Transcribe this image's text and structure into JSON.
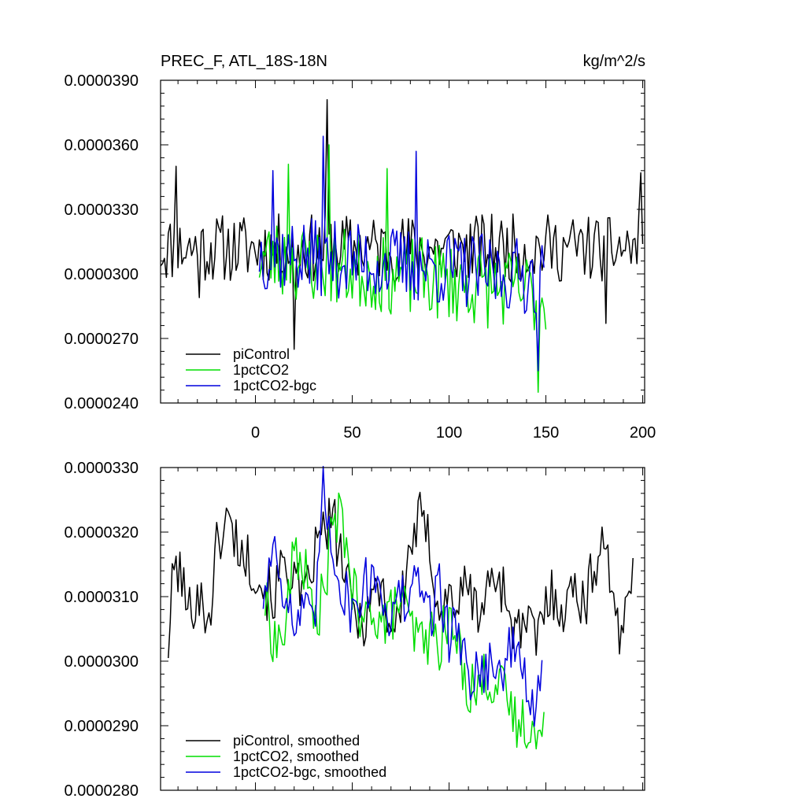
{
  "chart_data": [
    {
      "type": "line",
      "title": "PREC_F, ATL_18S-18N",
      "units": "kg/m^2/s",
      "xlim": [
        -49,
        201
      ],
      "ylim": [
        2.4e-05,
        3.9e-05
      ],
      "yticks": [
        "0.0000240",
        "0.0000270",
        "0.0000300",
        "0.0000330",
        "0.0000360",
        "0.0000390"
      ],
      "yticks_values": [
        2.4e-05,
        2.7e-05,
        3e-05,
        3.3e-05,
        3.6e-05,
        3.9e-05
      ],
      "xticks": [
        "0",
        "50",
        "100",
        "150",
        "200"
      ],
      "xticks_values": [
        0,
        50,
        100,
        150,
        200
      ],
      "legend_position": "bottom-left",
      "series": [
        {
          "name": "piControl",
          "color": "#000000",
          "x_start": -49,
          "x_end": 200,
          "seed": 11,
          "mean": 3.12e-05,
          "amp": 1.6e-06,
          "spikes": [
            [
              -41,
              3.5e-05
            ],
            [
              37,
              3.81e-05
            ],
            [
              20,
              2.65e-05
            ],
            [
              -29,
              2.89e-05
            ],
            [
              181,
              2.77e-05
            ],
            [
              199,
              3.47e-05
            ]
          ]
        },
        {
          "name": "1pctCO2",
          "color": "#00dd00",
          "x_start": 2,
          "x_end": 150,
          "seed": 23,
          "mean": 3.08e-05,
          "amp": 1.9e-06,
          "trend": -1.2e-08,
          "spikes": [
            [
              38,
              3.6e-05
            ],
            [
              146,
              2.45e-05
            ],
            [
              68,
              3.49e-05
            ],
            [
              17,
              3.51e-05
            ]
          ]
        },
        {
          "name": "1pctCO2-bgc",
          "color": "#0000dd",
          "x_start": 2,
          "x_end": 149,
          "seed": 37,
          "mean": 3.1e-05,
          "amp": 1.8e-06,
          "trend": -8e-09,
          "spikes": [
            [
              35,
              3.64e-05
            ],
            [
              83,
              3.57e-05
            ],
            [
              146,
              2.55e-05
            ],
            [
              9,
              3.48e-05
            ]
          ]
        }
      ]
    },
    {
      "type": "line",
      "xlim": [
        -49,
        201
      ],
      "ylim": [
        2.8e-05,
        3.3e-05
      ],
      "yticks": [
        "0.0000280",
        "0.0000290",
        "0.0000300",
        "0.0000310",
        "0.0000320",
        "0.0000330"
      ],
      "yticks_values": [
        2.8e-05,
        2.9e-05,
        3e-05,
        3.1e-05,
        3.2e-05,
        3.3e-05
      ],
      "xticks_values": [
        0,
        50,
        100,
        150,
        200
      ],
      "legend_position": "bottom-left",
      "series": [
        {
          "name": "piControl, smoothed",
          "color": "#000000",
          "x_start": -45,
          "x_end": 195,
          "anchors": [
            [
              -45,
              3.025e-05
            ],
            [
              -42,
              3.15e-05
            ],
            [
              -38,
              3.13e-05
            ],
            [
              -35,
              3.07e-05
            ],
            [
              -30,
              3.11e-05
            ],
            [
              -26,
              3.07e-05
            ],
            [
              -22,
              3.1e-05
            ],
            [
              -20,
              3.18e-05
            ],
            [
              -15,
              3.22e-05
            ],
            [
              -10,
              3.19e-05
            ],
            [
              -6,
              3.16e-05
            ],
            [
              -1,
              3.15e-05
            ],
            [
              5,
              3.11e-05
            ],
            [
              10,
              3.1e-05
            ],
            [
              15,
              3.16e-05
            ],
            [
              20,
              3.13e-05
            ],
            [
              25,
              3.08e-05
            ],
            [
              30,
              3.16e-05
            ],
            [
              35,
              3.2e-05
            ],
            [
              40,
              3.22e-05
            ],
            [
              45,
              3.15e-05
            ],
            [
              50,
              3.08e-05
            ],
            [
              55,
              3.06e-05
            ],
            [
              60,
              3.1e-05
            ],
            [
              65,
              3.12e-05
            ],
            [
              70,
              3.05e-05
            ],
            [
              75,
              3.08e-05
            ],
            [
              80,
              3.18e-05
            ],
            [
              85,
              3.22e-05
            ],
            [
              90,
              3.18e-05
            ],
            [
              95,
              3.08e-05
            ],
            [
              100,
              3.1e-05
            ],
            [
              105,
              3.09e-05
            ],
            [
              110,
              3.12e-05
            ],
            [
              115,
              3.07e-05
            ],
            [
              120,
              3.11e-05
            ],
            [
              125,
              3.14e-05
            ],
            [
              130,
              3.09e-05
            ],
            [
              135,
              3.04e-05
            ],
            [
              140,
              3.06e-05
            ],
            [
              145,
              3.03e-05
            ],
            [
              150,
              3.09e-05
            ],
            [
              155,
              3.11e-05
            ],
            [
              160,
              3.07e-05
            ],
            [
              165,
              3.13e-05
            ],
            [
              170,
              3.08e-05
            ],
            [
              175,
              3.15e-05
            ],
            [
              180,
              3.2e-05
            ],
            [
              184,
              3.12e-05
            ],
            [
              188,
              3.01e-05
            ],
            [
              192,
              3.1e-05
            ],
            [
              195,
              3.17e-05
            ]
          ]
        },
        {
          "name": "1pctCO2, smoothed",
          "color": "#00dd00",
          "x_start": 5,
          "x_end": 149,
          "anchors": [
            [
              5,
              3.09e-05
            ],
            [
              10,
              3.03e-05
            ],
            [
              15,
              3.04e-05
            ],
            [
              20,
              3.17e-05
            ],
            [
              25,
              3.15e-05
            ],
            [
              30,
              3.06e-05
            ],
            [
              35,
              3.1e-05
            ],
            [
              40,
              3.21e-05
            ],
            [
              45,
              3.22e-05
            ],
            [
              50,
              3.12e-05
            ],
            [
              55,
              3.04e-05
            ],
            [
              60,
              3.09e-05
            ],
            [
              65,
              3.06e-05
            ],
            [
              70,
              3.07e-05
            ],
            [
              75,
              3.1e-05
            ],
            [
              80,
              3.05e-05
            ],
            [
              85,
              3.03e-05
            ],
            [
              90,
              3.04e-05
            ],
            [
              95,
              3.03e-05
            ],
            [
              100,
              3.06e-05
            ],
            [
              105,
              3.02e-05
            ],
            [
              110,
              2.96e-05
            ],
            [
              115,
              2.96e-05
            ],
            [
              120,
              2.98e-05
            ],
            [
              125,
              2.96e-05
            ],
            [
              130,
              2.94e-05
            ],
            [
              135,
              2.9e-05
            ],
            [
              140,
              2.91e-05
            ],
            [
              145,
              2.88e-05
            ],
            [
              149,
              2.88e-05
            ]
          ]
        },
        {
          "name": "1pctCO2-bgc, smoothed",
          "color": "#0000dd",
          "x_start": 4,
          "x_end": 148,
          "anchors": [
            [
              4,
              3.1e-05
            ],
            [
              10,
              3.19e-05
            ],
            [
              15,
              3.11e-05
            ],
            [
              20,
              3.05e-05
            ],
            [
              25,
              3.08e-05
            ],
            [
              30,
              3.04e-05
            ],
            [
              35,
              3.26e-05
            ],
            [
              40,
              3.18e-05
            ],
            [
              45,
              3.11e-05
            ],
            [
              50,
              3.08e-05
            ],
            [
              55,
              3.11e-05
            ],
            [
              60,
              3.13e-05
            ],
            [
              65,
              3.12e-05
            ],
            [
              70,
              3.06e-05
            ],
            [
              75,
              3.1e-05
            ],
            [
              80,
              3.09e-05
            ],
            [
              85,
              3.13e-05
            ],
            [
              90,
              3.07e-05
            ],
            [
              95,
              3.12e-05
            ],
            [
              100,
              3.04e-05
            ],
            [
              105,
              3.05e-05
            ],
            [
              110,
              2.98e-05
            ],
            [
              115,
              2.98e-05
            ],
            [
              120,
              3e-05
            ],
            [
              125,
              2.97e-05
            ],
            [
              130,
              3.01e-05
            ],
            [
              135,
              3.02e-05
            ],
            [
              140,
              2.97e-05
            ],
            [
              145,
              2.9e-05
            ],
            [
              148,
              3e-05
            ]
          ]
        }
      ]
    }
  ]
}
